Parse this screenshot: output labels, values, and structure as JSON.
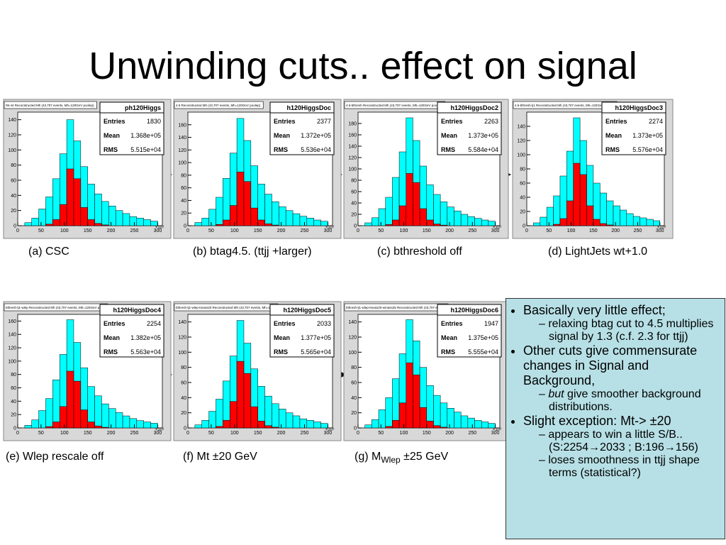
{
  "title": "Unwinding cuts.. effect on signal",
  "chart_data": [
    {
      "type": "histogram",
      "title": "05-44 Reconstructed Mh (43,707 events, Mh=120GeV poolep)",
      "stats": {
        "name": "ph120Higgs",
        "rows": [
          [
            "Entries",
            1830
          ],
          [
            "Mean",
            "1.368e+05"
          ],
          [
            "RMS",
            "5.515e+04"
          ]
        ]
      },
      "bins": [
        0,
        15,
        30,
        45,
        60,
        75,
        90,
        105,
        120,
        135,
        150,
        165,
        180,
        195,
        210,
        225,
        240,
        255,
        270,
        285,
        300
      ],
      "series": [
        {
          "color": "#00ffff",
          "values": [
            0,
            4,
            10,
            22,
            38,
            62,
            95,
            140,
            112,
            78,
            55,
            42,
            32,
            26,
            20,
            16,
            12,
            10,
            8,
            6
          ]
        },
        {
          "color": "#ff0000",
          "values": [
            0,
            0,
            0,
            0,
            2,
            8,
            28,
            75,
            62,
            24,
            8,
            3,
            1,
            0,
            0,
            0,
            0,
            0,
            0,
            0
          ]
        }
      ],
      "xlim": [
        0,
        310
      ],
      "xticks": [
        0,
        50,
        100,
        150,
        200,
        250,
        300
      ],
      "xlabel": "×10³",
      "ylim": [
        0,
        150
      ],
      "yticks": [
        0,
        20,
        40,
        60,
        80,
        100,
        120,
        140
      ]
    },
    {
      "type": "histogram",
      "title": "4.5 Reconstructed Mh (43,707 events, Mh=120GeV poolep)",
      "stats": {
        "name": "h120HiggsDoc",
        "rows": [
          [
            "Entries",
            2377
          ],
          [
            "Mean",
            "1.372e+05"
          ],
          [
            "RMS",
            "5.536e+04"
          ]
        ]
      },
      "bins": [
        0,
        15,
        30,
        45,
        60,
        75,
        90,
        105,
        120,
        135,
        150,
        165,
        180,
        195,
        210,
        225,
        240,
        255,
        270,
        285,
        300
      ],
      "series": [
        {
          "color": "#00ffff",
          "values": [
            0,
            5,
            12,
            26,
            45,
            75,
            115,
            170,
            135,
            95,
            66,
            50,
            38,
            30,
            24,
            19,
            15,
            12,
            9,
            7
          ]
        },
        {
          "color": "#ff0000",
          "values": [
            0,
            0,
            0,
            0,
            2,
            9,
            32,
            85,
            70,
            28,
            9,
            3,
            1,
            0,
            0,
            0,
            0,
            0,
            0,
            0
          ]
        }
      ],
      "xlim": [
        0,
        310
      ],
      "xticks": [
        0,
        50,
        100,
        150,
        200,
        250,
        300
      ],
      "xlabel": "×10³",
      "ylim": [
        0,
        180
      ],
      "yticks": [
        0,
        20,
        40,
        60,
        80,
        100,
        120,
        140,
        160
      ]
    },
    {
      "type": "histogram",
      "title": "4.5-bthresh Reconstructed Mh (43,707 events, Mh=120GeV poolep)",
      "stats": {
        "name": "h120HiggsDoc2",
        "rows": [
          [
            "Entries",
            2263
          ],
          [
            "Mean",
            "1.373e+05"
          ],
          [
            "RMS",
            "5.584e+04"
          ]
        ]
      },
      "bins": [
        0,
        15,
        30,
        45,
        60,
        75,
        90,
        105,
        120,
        135,
        150,
        165,
        180,
        195,
        210,
        225,
        240,
        255,
        270,
        285,
        300
      ],
      "series": [
        {
          "color": "#00ffff",
          "values": [
            0,
            5,
            14,
            30,
            50,
            85,
            130,
            190,
            150,
            105,
            72,
            55,
            42,
            33,
            26,
            20,
            16,
            13,
            10,
            8
          ]
        },
        {
          "color": "#ff0000",
          "values": [
            0,
            0,
            0,
            0,
            2,
            10,
            35,
            92,
            76,
            30,
            10,
            3,
            1,
            0,
            0,
            0,
            0,
            0,
            0,
            0
          ]
        }
      ],
      "xlim": [
        0,
        310
      ],
      "xticks": [
        0,
        50,
        100,
        150,
        200,
        250,
        300
      ],
      "xlabel": "×10³",
      "ylim": [
        0,
        200
      ],
      "yticks": [
        0,
        20,
        40,
        60,
        80,
        100,
        120,
        140,
        160,
        180
      ]
    },
    {
      "type": "histogram",
      "title": "4.5-bthresh-lj1 Reconstructed Mh (43,707 events, Mh=120GeV poolep)",
      "stats": {
        "name": "h120HiggsDoc3",
        "rows": [
          [
            "Entries",
            2274
          ],
          [
            "Mean",
            "1.373e+05"
          ],
          [
            "RMS",
            "5.576e+04"
          ]
        ]
      },
      "bins": [
        0,
        15,
        30,
        45,
        60,
        75,
        90,
        105,
        120,
        135,
        150,
        165,
        180,
        195,
        210,
        225,
        240,
        255,
        270,
        285,
        300
      ],
      "series": [
        {
          "color": "#00ffff",
          "values": [
            0,
            4,
            12,
            26,
            42,
            70,
            105,
            152,
            120,
            85,
            60,
            46,
            35,
            28,
            22,
            17,
            13,
            11,
            9,
            7
          ]
        },
        {
          "color": "#ff0000",
          "values": [
            0,
            0,
            0,
            0,
            2,
            10,
            35,
            88,
            72,
            28,
            9,
            3,
            1,
            0,
            0,
            0,
            0,
            0,
            0,
            0
          ]
        }
      ],
      "xlim": [
        0,
        310
      ],
      "xticks": [
        0,
        50,
        100,
        150,
        200,
        250,
        300
      ],
      "xlabel": "×10³",
      "ylim": [
        0,
        160
      ],
      "yticks": [
        0,
        20,
        40,
        60,
        80,
        100,
        120,
        140
      ]
    },
    {
      "type": "histogram",
      "title": "bthresh-lj1-wlep Reconstructed Mh (43,707 events, Mh=120GeV poolep)",
      "stats": {
        "name": "h120HiggsDoc4",
        "rows": [
          [
            "Entries",
            2254
          ],
          [
            "Mean",
            "1.382e+05"
          ],
          [
            "RMS",
            "5.563e+04"
          ]
        ]
      },
      "bins": [
        0,
        15,
        30,
        45,
        60,
        75,
        90,
        105,
        120,
        135,
        150,
        165,
        180,
        195,
        210,
        225,
        240,
        255,
        270,
        285,
        300
      ],
      "series": [
        {
          "color": "#00ffff",
          "values": [
            0,
            4,
            12,
            26,
            44,
            72,
            110,
            162,
            128,
            90,
            62,
            48,
            36,
            29,
            23,
            18,
            14,
            11,
            9,
            7
          ]
        },
        {
          "color": "#ff0000",
          "values": [
            0,
            0,
            0,
            0,
            2,
            9,
            32,
            85,
            70,
            27,
            9,
            3,
            1,
            0,
            0,
            0,
            0,
            0,
            0,
            0
          ]
        }
      ],
      "xlim": [
        0,
        310
      ],
      "xticks": [
        0,
        50,
        100,
        150,
        200,
        250,
        300
      ],
      "xlabel": "×10³",
      "ylim": [
        0,
        170
      ],
      "yticks": [
        0,
        20,
        40,
        60,
        80,
        100,
        120,
        140,
        160
      ]
    },
    {
      "type": "histogram",
      "title": "bthresh-lj1-wlep-tmass20 Reconstructed Mh (43,707 events, Mh=120GeV poolep)",
      "stats": {
        "name": "h120HiggsDoc5",
        "rows": [
          [
            "Entries",
            2033
          ],
          [
            "Mean",
            "1.377e+05"
          ],
          [
            "RMS",
            "5.565e+04"
          ]
        ]
      },
      "bins": [
        0,
        15,
        30,
        45,
        60,
        75,
        90,
        105,
        120,
        135,
        150,
        165,
        180,
        195,
        210,
        225,
        240,
        255,
        270,
        285,
        300
      ],
      "series": [
        {
          "color": "#00ffff",
          "values": [
            0,
            4,
            10,
            22,
            38,
            62,
            95,
            142,
            112,
            78,
            55,
            42,
            32,
            25,
            20,
            16,
            12,
            10,
            8,
            6
          ]
        },
        {
          "color": "#ff0000",
          "values": [
            0,
            0,
            0,
            0,
            2,
            10,
            35,
            88,
            72,
            28,
            9,
            3,
            1,
            0,
            0,
            0,
            0,
            0,
            0,
            0
          ]
        }
      ],
      "xlim": [
        0,
        310
      ],
      "xticks": [
        0,
        50,
        100,
        150,
        200,
        250,
        300
      ],
      "xlabel": "×10³",
      "ylim": [
        0,
        150
      ],
      "yticks": [
        0,
        20,
        40,
        60,
        80,
        100,
        120,
        140
      ]
    },
    {
      "type": "histogram",
      "title": "bthresh-lj1-wlep-tmass20-wmass25 Reconstructed Mh (43,707 events, Mh=120GeV poolep)",
      "stats": {
        "name": "h120HiggsDoc6",
        "rows": [
          [
            "Entries",
            1947
          ],
          [
            "Mean",
            "1.375e+05"
          ],
          [
            "RMS",
            "5.555e+04"
          ]
        ]
      },
      "bins": [
        0,
        15,
        30,
        45,
        60,
        75,
        90,
        105,
        120,
        135,
        150,
        165,
        180,
        195,
        210,
        225,
        240,
        255,
        270,
        285,
        300
      ],
      "series": [
        {
          "color": "#00ffff",
          "values": [
            0,
            4,
            11,
            24,
            40,
            65,
            98,
            143,
            115,
            80,
            56,
            43,
            33,
            26,
            21,
            16,
            13,
            10,
            8,
            6
          ]
        },
        {
          "color": "#ff0000",
          "values": [
            0,
            0,
            0,
            0,
            2,
            10,
            33,
            86,
            70,
            27,
            9,
            3,
            1,
            0,
            0,
            0,
            0,
            0,
            0,
            0
          ]
        }
      ],
      "xlim": [
        0,
        310
      ],
      "xticks": [
        0,
        50,
        100,
        150,
        200,
        250,
        300
      ],
      "xlabel": "×10³",
      "ylim": [
        0,
        150
      ],
      "yticks": [
        0,
        20,
        40,
        60,
        80,
        100,
        120,
        140
      ]
    }
  ],
  "captions": [
    "(a) CSC",
    "(b) btag4.5. (ttjj +larger)",
    "(c) bthreshold off",
    "(d) LightJets wt+1.0",
    "(e) Wlep rescale off",
    "(f) Mt ±20 GeV",
    [
      "(g) M",
      "Wlep",
      " ±25 GeV"
    ]
  ],
  "notes": [
    {
      "text": "Basically very little effect;",
      "sub": [
        [
          "relaxing btag cut to 4.5 multiplies signal by 1.3 (c.f. 2.3 for ttjj)"
        ]
      ]
    },
    {
      "text": "Other cuts give commensurate changes in Signal and Background,",
      "sub": [
        [
          "but",
          " give smoother background distributions."
        ]
      ]
    },
    {
      "text": "Slight exception: Mt-> ±20",
      "sub": [
        [
          "appears to win a little S/B..(S:2254",
          "→",
          "2033 ; B:196",
          "→",
          "156)"
        ],
        [
          "loses smoothness in ttjj shape terms (statistical?)"
        ]
      ]
    }
  ]
}
